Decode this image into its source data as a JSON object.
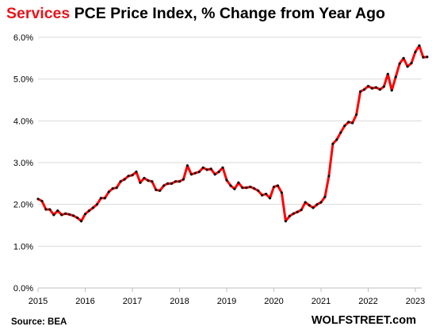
{
  "title": {
    "accent": "Services",
    "rest": " PCE Price Index, % Change from Year Ago"
  },
  "source": "Source: BEA",
  "brand": "WOLFSTREET.com",
  "colors": {
    "line": "#ff0000",
    "marker": "#111111",
    "grid": "#d9d9d9",
    "accent": "#e8141b"
  },
  "chart_data": {
    "type": "line",
    "title": "Services PCE Price Index, % Change from Year Ago",
    "xlabel": "",
    "ylabel": "",
    "x_ticks": [
      "2015",
      "2016",
      "2017",
      "2018",
      "2019",
      "2020",
      "2021",
      "2022",
      "2023"
    ],
    "y_ticks": [
      "0.0%",
      "1.0%",
      "2.0%",
      "3.0%",
      "4.0%",
      "5.0%",
      "6.0%"
    ],
    "ylim": [
      0,
      6
    ],
    "grid": true,
    "legend": "none",
    "x_start": "2015-01",
    "frequency": "monthly",
    "series": [
      {
        "values": [
          2.13,
          2.08,
          1.88,
          1.88,
          1.75,
          1.85,
          1.75,
          1.78,
          1.76,
          1.73,
          1.68,
          1.6,
          1.77,
          1.85,
          1.92,
          2.0,
          2.15,
          2.15,
          2.3,
          2.38,
          2.4,
          2.55,
          2.6,
          2.68,
          2.7,
          2.78,
          2.52,
          2.63,
          2.57,
          2.55,
          2.35,
          2.33,
          2.45,
          2.5,
          2.5,
          2.55,
          2.55,
          2.6,
          2.93,
          2.72,
          2.75,
          2.78,
          2.88,
          2.83,
          2.85,
          2.72,
          2.78,
          2.88,
          2.58,
          2.45,
          2.37,
          2.52,
          2.4,
          2.4,
          2.42,
          2.38,
          2.33,
          2.22,
          2.25,
          2.15,
          2.42,
          2.45,
          2.28,
          1.6,
          1.72,
          1.78,
          1.82,
          1.87,
          2.05,
          1.98,
          1.92,
          2.0,
          2.05,
          2.18,
          2.68,
          3.45,
          3.55,
          3.72,
          3.88,
          3.97,
          3.95,
          4.15,
          4.7,
          4.75,
          4.83,
          4.78,
          4.8,
          4.75,
          4.82,
          5.12,
          4.73,
          5.05,
          5.37,
          5.5,
          5.3,
          5.38,
          5.65,
          5.8,
          5.52,
          5.53
        ]
      }
    ]
  }
}
